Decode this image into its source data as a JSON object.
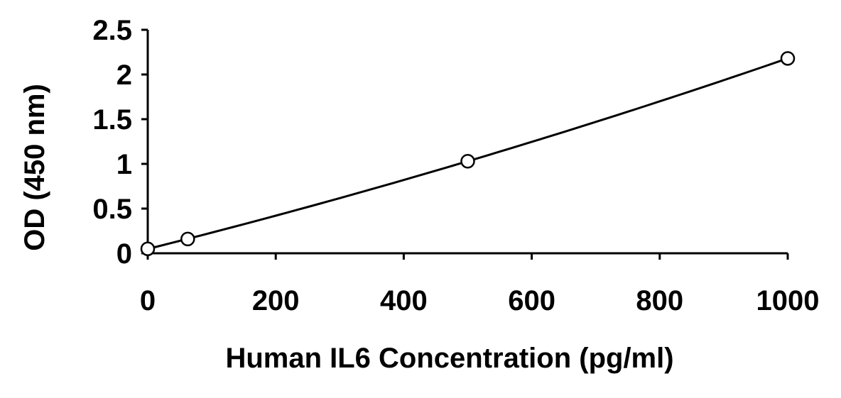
{
  "chart_data": {
    "type": "scatter",
    "title": "",
    "xlabel": "Human IL6 Concentration (pg/ml)",
    "ylabel": "OD (450 nm)",
    "xlim": [
      0,
      1000
    ],
    "ylim": [
      0,
      2.5
    ],
    "x_ticks": [
      "0",
      "200",
      "400",
      "600",
      "800",
      "1000"
    ],
    "y_ticks": [
      "0",
      "0.5",
      "1",
      "1.5",
      "2",
      "2.5"
    ],
    "grid": false,
    "legend": "none",
    "series": [
      {
        "marker": "open-circle",
        "line": "fitted curve",
        "x": [
          0,
          62.5,
          500,
          1000
        ],
        "y": [
          0.05,
          0.16,
          1.03,
          2.18
        ]
      }
    ],
    "colors": {
      "line": "#000000",
      "marker_fill": "#ffffff",
      "marker_stroke": "#000000"
    }
  }
}
